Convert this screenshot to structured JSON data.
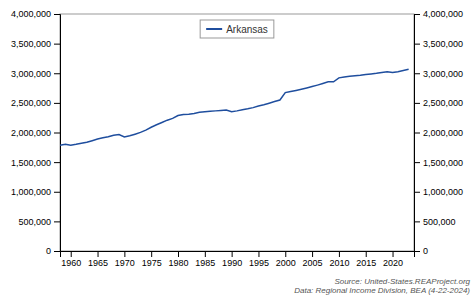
{
  "chart_data": {
    "type": "line",
    "x": [
      1958,
      1959,
      1960,
      1961,
      1962,
      1963,
      1964,
      1965,
      1966,
      1967,
      1968,
      1969,
      1970,
      1971,
      1972,
      1973,
      1974,
      1975,
      1976,
      1977,
      1978,
      1979,
      1980,
      1981,
      1982,
      1983,
      1984,
      1985,
      1986,
      1987,
      1988,
      1989,
      1990,
      1991,
      1992,
      1993,
      1994,
      1995,
      1996,
      1997,
      1998,
      1999,
      2000,
      2001,
      2002,
      2003,
      2004,
      2005,
      2006,
      2007,
      2008,
      2009,
      2010,
      2011,
      2012,
      2013,
      2014,
      2015,
      2016,
      2017,
      2018,
      2019,
      2020,
      2021,
      2022,
      2023
    ],
    "series": [
      {
        "name": "Arkansas",
        "color": "#1f4e9e",
        "values": [
          1786000,
          1800000,
          1786272,
          1800000,
          1818000,
          1835000,
          1862000,
          1890000,
          1910000,
          1928000,
          1955000,
          1965000,
          1923295,
          1944000,
          1972000,
          2002000,
          2040000,
          2088000,
          2130000,
          2168000,
          2208000,
          2238000,
          2286419,
          2305000,
          2310000,
          2320000,
          2340000,
          2350000,
          2358000,
          2365000,
          2372000,
          2380000,
          2350725,
          2365000,
          2385000,
          2400000,
          2420000,
          2448000,
          2470000,
          2495000,
          2522000,
          2548000,
          2673400,
          2692000,
          2710000,
          2730000,
          2752000,
          2775000,
          2800000,
          2827000,
          2855000,
          2856000,
          2921964,
          2938000,
          2950000,
          2958000,
          2966000,
          2978000,
          2988000,
          2999000,
          3013000,
          3025000,
          3012000,
          3025000,
          3045000,
          3067000
        ]
      }
    ],
    "xlim": [
      1958,
      2024
    ],
    "xticks": [
      1960,
      1965,
      1970,
      1975,
      1980,
      1985,
      1990,
      1995,
      2000,
      2005,
      2010,
      2015,
      2020
    ],
    "ylim": [
      0,
      4000000
    ],
    "yticks": [
      0,
      {
        "value": 500000,
        "label": "500,000"
      },
      {
        "value": 1000000,
        "label": "1,000,000"
      },
      {
        "value": 1500000,
        "label": "1,500,000"
      },
      {
        "value": 2000000,
        "label": "2,000,000"
      },
      {
        "value": 2500000,
        "label": "2,500,000"
      },
      {
        "value": 3000000,
        "label": "3,000,000"
      },
      {
        "value": 3500000,
        "label": "3,500,000"
      },
      {
        "value": 4000000,
        "label": "4,000,000"
      }
    ],
    "y2lim": [
      0,
      4000000
    ],
    "y2ticks": [
      0,
      {
        "value": 500000,
        "label": "500,000"
      },
      {
        "value": 1000000,
        "label": "1,000,000"
      },
      {
        "value": 1500000,
        "label": "1,500,000"
      },
      {
        "value": 2000000,
        "label": "2,000,000"
      },
      {
        "value": 2500000,
        "label": "2,500,000"
      },
      {
        "value": 3000000,
        "label": "3,000,000"
      },
      {
        "value": 3500000,
        "label": "3,500,000"
      },
      {
        "value": 4000000,
        "label": "4,000,000"
      }
    ],
    "annotations": [
      "Source: United-States.REAProject.org\nData: Regional Income Division, BEA (4-22-2024)"
    ],
    "legend": "top",
    "grid": false
  }
}
